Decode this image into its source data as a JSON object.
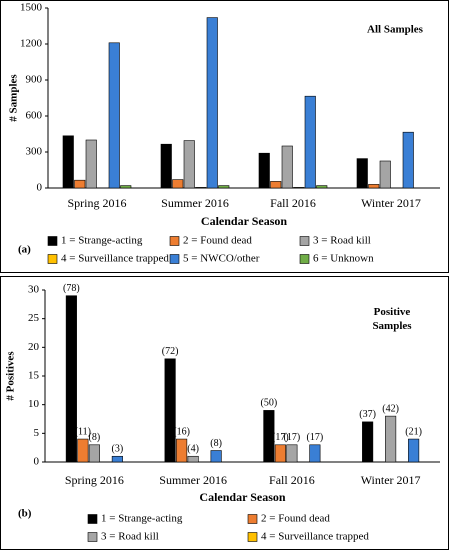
{
  "chart_data": [
    {
      "type": "bar",
      "title": "All Samples",
      "panel_label": "(a)",
      "x_label": "Calendar Season",
      "y_label": "# Samples",
      "categories": [
        "Spring 2016",
        "Summer 2016",
        "Fall 2016",
        "Winter 2017"
      ],
      "series": [
        {
          "name": "1 = Strange-acting",
          "color": "#000000",
          "values": [
            435,
            365,
            290,
            245
          ]
        },
        {
          "name": "2 = Found dead",
          "color": "#ed7d31",
          "values": [
            65,
            70,
            55,
            30
          ]
        },
        {
          "name": "3 = Road kill",
          "color": "#a5a5a5",
          "values": [
            400,
            395,
            350,
            225
          ]
        },
        {
          "name": "4 = Surveillance trapped",
          "color": "#ffc000",
          "values": [
            0,
            5,
            5,
            0
          ]
        },
        {
          "name": "5 = NWCO/other",
          "color": "#3a7fd5",
          "values": [
            1210,
            1420,
            765,
            465
          ]
        },
        {
          "name": "6 = Unknown",
          "color": "#70ad47",
          "values": [
            20,
            20,
            20,
            0
          ]
        }
      ],
      "ylim": [
        0,
        1500
      ],
      "yticks": [
        0,
        300,
        600,
        900,
        1200,
        1500
      ]
    },
    {
      "type": "bar",
      "title": "Positive Samples",
      "panel_label": "(b)",
      "x_label": "Calendar Season",
      "y_label": "# Positives",
      "categories": [
        "Spring 2016",
        "Summer 2016",
        "Fall 2016",
        "Winter 2017"
      ],
      "series": [
        {
          "name": "1 = Strange-acting",
          "color": "#000000",
          "values": [
            29,
            18,
            9,
            7
          ],
          "value_labels": [
            "(78)",
            "(72)",
            "(50)",
            "(37)"
          ]
        },
        {
          "name": "2 = Found dead",
          "color": "#ed7d31",
          "values": [
            4,
            4,
            3,
            0
          ],
          "value_labels": [
            "(11)",
            "(16)",
            "(17)",
            null
          ]
        },
        {
          "name": "3 = Road kill",
          "color": "#a5a5a5",
          "values": [
            3,
            1,
            3,
            8
          ],
          "value_labels": [
            "(8)",
            "(4)",
            "(17)",
            "(42)"
          ]
        },
        {
          "name": "4 = Surveillance trapped",
          "color": "#ffc000",
          "values": [
            0,
            0,
            0,
            0
          ],
          "value_labels": [
            null,
            null,
            null,
            null
          ]
        },
        {
          "name": null,
          "color": "#3a7fd5",
          "values": [
            1,
            2,
            3,
            4
          ],
          "value_labels": [
            "(3)",
            "(8)",
            "(17)",
            "(21)"
          ]
        }
      ],
      "ylim": [
        0,
        30
      ],
      "yticks": [
        0,
        5,
        10,
        15,
        20,
        25,
        30
      ]
    }
  ]
}
